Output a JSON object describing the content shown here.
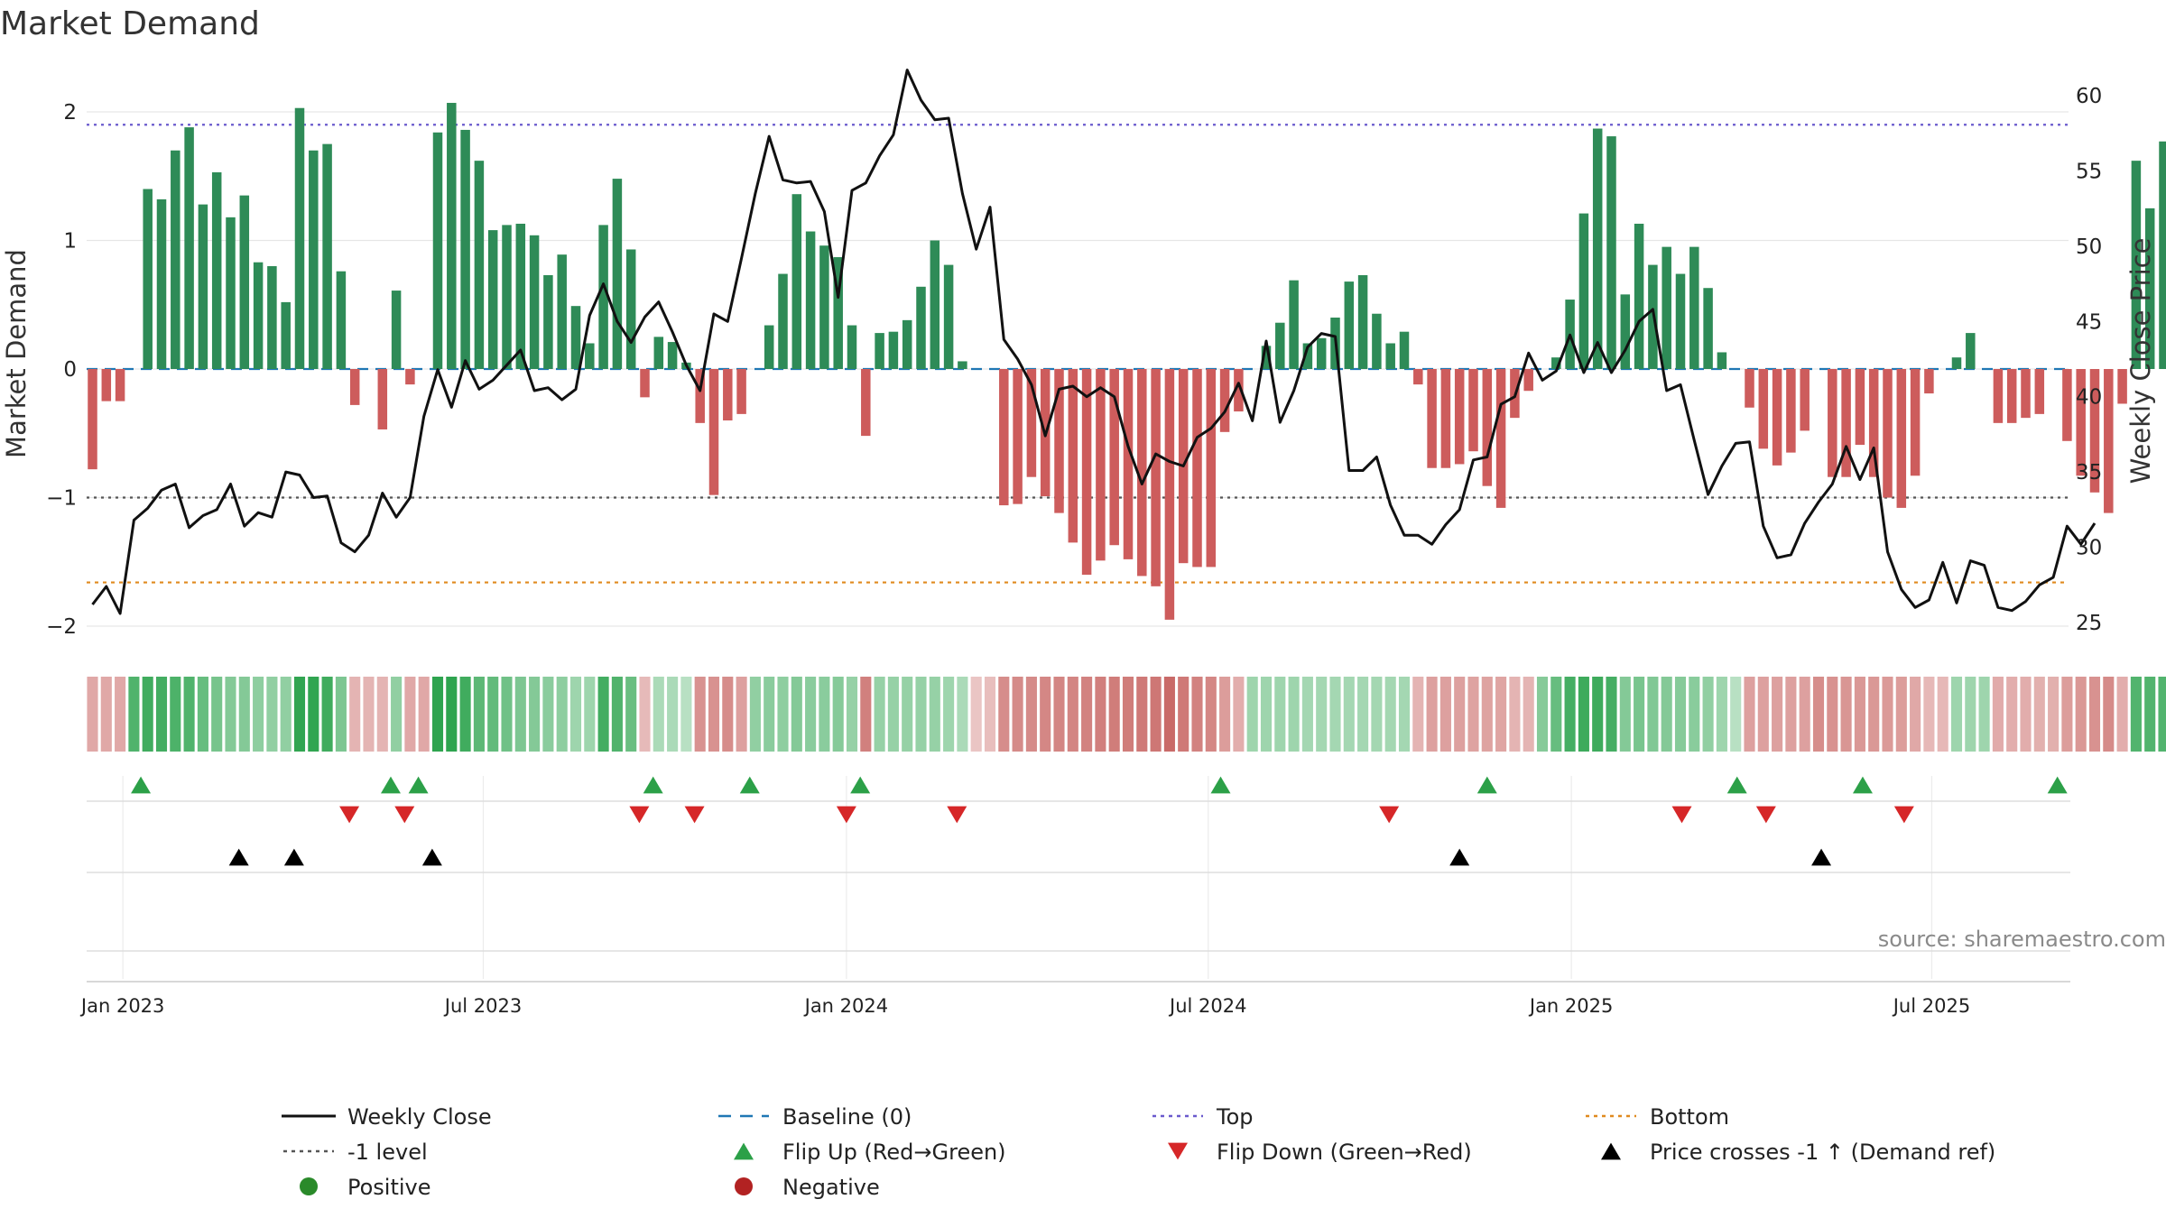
{
  "title": "Market Demand",
  "source_note": "source: sharemaestro.com",
  "colors": {
    "positive": "#2e8b57",
    "negative": "#cd5c5c",
    "close": "#111111",
    "baseline": "#1f77b4",
    "top": "#6a5acd",
    "bottom": "#e08a1e",
    "minus1": "#555555",
    "flip_up": "#2ca048",
    "flip_down": "#d62728",
    "cross": "#000000"
  },
  "chart_data": {
    "type": "bar+line",
    "title": "Market Demand",
    "ylabel_left": "Market Demand",
    "ylabel_right": "Weekly Close Price",
    "ylim_left": [
      -2.2,
      2.0
    ],
    "ylim_right": [
      24,
      60
    ],
    "left_ticks": [
      2,
      1,
      0,
      -1,
      -2
    ],
    "left_tick_labels": [
      "2",
      "1",
      "0",
      "−1",
      "−2"
    ],
    "right_ticks": [
      60,
      55,
      50,
      45,
      40,
      35,
      30,
      25
    ],
    "right_tick_labels": [
      "60",
      "55",
      "50",
      "45",
      "40",
      "35",
      "30",
      "25"
    ],
    "x_ticks": [
      {
        "week": 2.2,
        "label": "Jan 2023"
      },
      {
        "week": 28.3,
        "label": "Jul 2023"
      },
      {
        "week": 54.6,
        "label": "Jan 2024"
      },
      {
        "week": 80.8,
        "label": "Jul 2024"
      },
      {
        "week": 107.1,
        "label": "Jan 2025"
      },
      {
        "week": 133.2,
        "label": "Jul 2025"
      }
    ],
    "reference_lines": {
      "baseline": 0,
      "top": 1.9,
      "bottom": -1.66,
      "minus_one": -1
    },
    "weeks": 145,
    "demand": [
      -0.78,
      -0.25,
      -0.25,
      0.0,
      1.4,
      1.32,
      1.7,
      1.88,
      1.28,
      1.53,
      1.18,
      1.35,
      0.83,
      0.8,
      0.52,
      2.03,
      1.7,
      1.75,
      0.76,
      -0.28,
      0.0,
      -0.47,
      0.61,
      -0.12,
      0.0,
      1.84,
      2.07,
      1.86,
      1.62,
      1.08,
      1.12,
      1.13,
      1.04,
      0.73,
      0.89,
      0.49,
      0.2,
      1.12,
      1.48,
      0.93,
      -0.22,
      0.25,
      0.21,
      0.05,
      -0.42,
      -0.98,
      -0.4,
      -0.35,
      0.0,
      0.34,
      0.74,
      1.36,
      1.07,
      0.96,
      0.87,
      0.34,
      -0.52,
      0.28,
      0.29,
      0.38,
      0.64,
      1.0,
      0.81,
      0.06,
      0.0,
      0.0,
      -1.06,
      -1.05,
      -0.84,
      -0.99,
      -1.12,
      -1.35,
      -1.6,
      -1.49,
      -1.37,
      -1.48,
      -1.61,
      -1.69,
      -1.95,
      -1.51,
      -1.54,
      -1.54,
      -0.49,
      -0.33,
      0.0,
      0.18,
      0.36,
      0.69,
      0.2,
      0.24,
      0.4,
      0.68,
      0.73,
      0.43,
      0.2,
      0.29,
      -0.12,
      -0.77,
      -0.77,
      -0.74,
      -0.64,
      -0.91,
      -1.08,
      -0.38,
      -0.17,
      0.0,
      0.09,
      0.54,
      1.21,
      1.87,
      1.81,
      0.58,
      1.13,
      0.81,
      0.95,
      0.74,
      0.95,
      0.63,
      0.13,
      0.0,
      -0.3,
      -0.62,
      -0.75,
      -0.65,
      -0.48,
      0.0,
      -0.84,
      -0.84,
      -0.59,
      -0.84,
      -1.0,
      -1.08,
      -0.83,
      -0.19,
      0.0,
      0.09,
      0.28,
      0.0,
      -0.42,
      -0.42,
      -0.38,
      -0.35,
      0.0,
      -0.56,
      -0.83,
      -0.96,
      -1.12,
      -0.27,
      1.62,
      1.25,
      1.77
    ],
    "close": [
      26.2,
      27.4,
      25.6,
      31.8,
      32.6,
      33.8,
      34.2,
      31.3,
      32.1,
      32.5,
      34.2,
      31.4,
      32.3,
      32.0,
      35.0,
      34.8,
      33.3,
      33.4,
      30.3,
      29.7,
      30.8,
      33.6,
      32.0,
      33.3,
      38.7,
      41.8,
      39.3,
      42.4,
      40.5,
      41.1,
      42.1,
      43.1,
      40.4,
      40.6,
      39.8,
      40.5,
      45.4,
      47.5,
      45.0,
      43.6,
      45.3,
      46.3,
      44.3,
      42.1,
      40.4,
      45.5,
      45.0,
      49.2,
      53.5,
      57.3,
      54.4,
      54.2,
      54.3,
      52.3,
      46.6,
      53.7,
      54.2,
      56.0,
      57.4,
      61.7,
      59.7,
      58.4,
      58.5,
      53.5,
      49.8,
      52.6,
      43.8,
      42.5,
      40.8,
      37.4,
      40.5,
      40.7,
      40.0,
      40.6,
      40.0,
      36.7,
      34.2,
      36.2,
      35.7,
      35.4,
      37.3,
      37.9,
      39.0,
      40.9,
      38.4,
      43.7,
      38.3,
      40.4,
      43.3,
      44.2,
      44.0,
      35.1,
      35.1,
      36.0,
      32.8,
      30.8,
      30.8,
      30.2,
      31.5,
      32.5,
      35.8,
      36.0,
      39.5,
      40.0,
      42.9,
      41.1,
      41.7,
      44.1,
      41.6,
      43.6,
      41.6,
      43.1,
      45.0,
      45.8,
      40.4,
      40.8,
      37.1,
      33.5,
      35.4,
      36.9,
      37.0,
      31.4,
      29.3,
      29.5,
      31.6,
      33.0,
      34.2,
      36.7,
      34.5,
      36.6,
      29.7,
      27.2,
      26.0,
      26.5,
      29.0,
      26.3,
      29.1,
      28.8,
      26.0,
      25.8,
      26.4,
      27.5,
      28.0,
      31.4,
      30.2,
      31.6
    ],
    "strip_tone": [
      -0.35,
      -0.35,
      -0.35,
      0.9,
      1.02,
      1.0,
      0.92,
      0.9,
      0.72,
      0.6,
      0.5,
      0.5,
      0.42,
      0.4,
      0.4,
      1.14,
      1.14,
      1.02,
      0.55,
      -0.24,
      -0.24,
      -0.24,
      0.4,
      -0.35,
      -0.35,
      1.26,
      1.26,
      1.02,
      0.8,
      0.75,
      0.65,
      0.55,
      0.5,
      0.45,
      0.42,
      0.3,
      0.3,
      1.0,
      0.9,
      0.7,
      -0.18,
      0.2,
      0.2,
      0.1,
      -0.55,
      -0.55,
      -0.6,
      -0.42,
      0.4,
      0.45,
      0.42,
      0.5,
      0.45,
      0.45,
      0.48,
      0.36,
      -0.72,
      0.36,
      0.36,
      0.36,
      0.36,
      0.36,
      0.3,
      0.2,
      -0.08,
      -0.15,
      -0.6,
      -0.62,
      -0.62,
      -0.65,
      -0.67,
      -0.67,
      -0.7,
      -0.73,
      -0.75,
      -0.75,
      -0.78,
      -0.8,
      -0.92,
      -0.78,
      -0.7,
      -0.65,
      -0.45,
      -0.3,
      0.3,
      0.3,
      0.3,
      0.3,
      0.25,
      0.25,
      0.25,
      0.25,
      0.25,
      0.25,
      0.25,
      0.25,
      -0.24,
      -0.42,
      -0.42,
      -0.42,
      -0.4,
      -0.4,
      -0.38,
      -0.24,
      -0.24,
      0.48,
      0.72,
      0.98,
      1.04,
      1.04,
      0.98,
      0.5,
      0.58,
      0.52,
      0.5,
      0.48,
      0.46,
      0.4,
      0.3,
      0.1,
      -0.42,
      -0.42,
      -0.42,
      -0.42,
      -0.42,
      -0.6,
      -0.55,
      -0.52,
      -0.5,
      -0.5,
      -0.48,
      -0.45,
      -0.35,
      -0.2,
      -0.2,
      0.3,
      0.3,
      0.3,
      -0.32,
      -0.3,
      -0.3,
      -0.28,
      -0.28,
      -0.45,
      -0.5,
      -0.55,
      -0.62,
      -0.3,
      0.88,
      0.88,
      0.88
    ],
    "flip_up_weeks": [
      3.5,
      21.6,
      23.6,
      40.6,
      47.6,
      55.6,
      81.7,
      101.0,
      119.1,
      128.2,
      142.3
    ],
    "flip_down_weeks": [
      18.6,
      22.6,
      39.6,
      43.6,
      54.6,
      62.6,
      93.9,
      115.1,
      121.2,
      131.2
    ],
    "price_cross_weeks": [
      10.6,
      14.6,
      24.6,
      99.0,
      125.2
    ]
  },
  "legend": [
    {
      "label": "Weekly Close",
      "kind": "line"
    },
    {
      "label": "Baseline (0)",
      "kind": "dash"
    },
    {
      "label": "Top",
      "kind": "dots-blue"
    },
    {
      "label": "Bottom",
      "kind": "dots-orange"
    },
    {
      "label": "-1 level",
      "kind": "dots-gray"
    },
    {
      "label": "Flip Up (Red→Green)",
      "kind": "tri-up-green"
    },
    {
      "label": "Flip Down (Green→Red)",
      "kind": "tri-down-red"
    },
    {
      "label": "Price crosses -1 ↑ (Demand ref)",
      "kind": "tri-up-black"
    },
    {
      "label": "Positive",
      "kind": "dot-green"
    },
    {
      "label": "Negative",
      "kind": "dot-red"
    }
  ]
}
